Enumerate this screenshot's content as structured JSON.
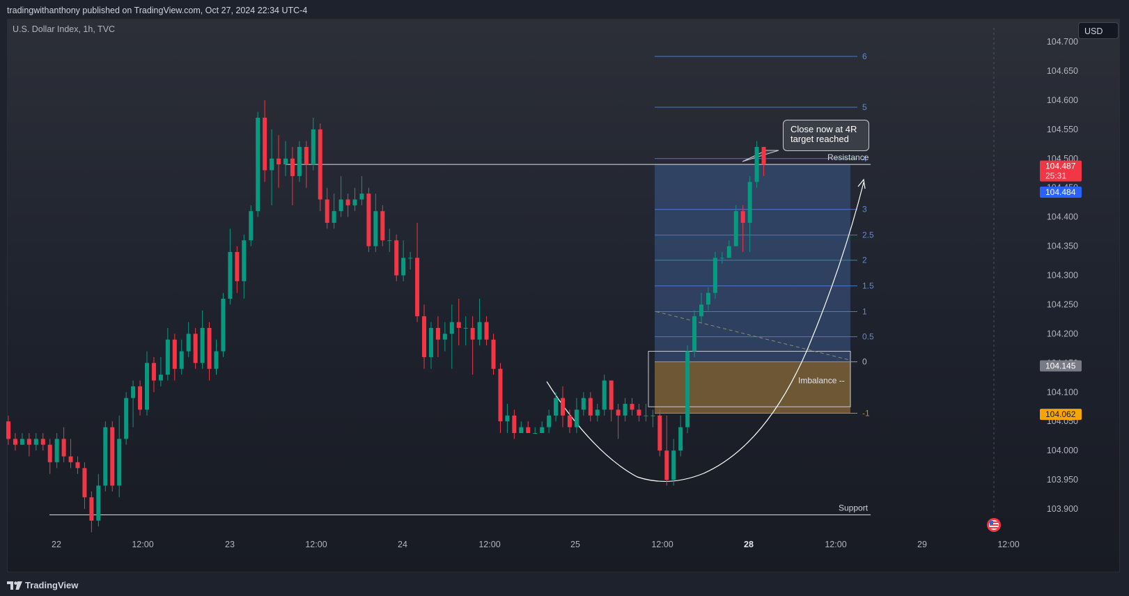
{
  "header": {
    "published": "tradingwithanthony published on TradingView.com, Oct 27, 2024 22:34 UTC-4",
    "symbol": "U.S. Dollar Index, 1h, TVC",
    "currency_button": "USD",
    "brand": "TradingView"
  },
  "chart_data": {
    "type": "candlestick",
    "title": "U.S. Dollar Index, 1h, TVC",
    "ylim": [
      103.87,
      104.71
    ],
    "y_ticks": [
      "103.900",
      "103.950",
      "104.000",
      "104.050",
      "104.100",
      "104.150",
      "104.200",
      "104.250",
      "104.300",
      "104.350",
      "104.400",
      "104.450",
      "104.500",
      "104.550",
      "104.600",
      "104.650",
      "104.700"
    ],
    "x_ticks": [
      "22",
      "12:00",
      "23",
      "12:00",
      "24",
      "12:00",
      "25",
      "12:00",
      "28",
      "12:00",
      "29",
      "12:00"
    ],
    "price_labels": {
      "last": {
        "value": "104.487",
        "countdown": "25:31",
        "color": "#f23645"
      },
      "bid": {
        "value": "104.484",
        "color": "#2962ff"
      },
      "zero_level": {
        "value": "104.145",
        "color": "#787b86"
      },
      "minus_one": {
        "value": "104.062",
        "color": "#f7a600"
      }
    },
    "levels": {
      "resistance": {
        "label": "Resistance",
        "value": 104.49
      },
      "support": {
        "label": "Support",
        "value": 103.89
      }
    },
    "fib_levels": [
      {
        "label": "6",
        "value": 104.675
      },
      {
        "label": "5",
        "value": 104.588
      },
      {
        "label": "4",
        "value": 104.5
      },
      {
        "label": "3",
        "value": 104.413
      },
      {
        "label": "2.5",
        "value": 104.369
      },
      {
        "label": "2",
        "value": 104.326
      },
      {
        "label": "1.5",
        "value": 104.282
      },
      {
        "label": "1",
        "value": 104.238
      },
      {
        "label": "0.5",
        "value": 104.195
      },
      {
        "label": "0",
        "value": 104.152
      },
      {
        "label": "-1",
        "value": 104.064
      }
    ],
    "annotations": {
      "imbalance": "Imbalance --",
      "callout_line1": "Close now at 4R",
      "callout_line2": "target reached"
    },
    "up_color": "#089981",
    "down_color": "#f23645",
    "candles": [
      [
        104.05,
        104.02,
        104.06,
        104.01
      ],
      [
        104.02,
        104.01,
        104.03,
        104.0
      ],
      [
        104.01,
        104.02,
        104.03,
        104.01
      ],
      [
        104.02,
        104.01,
        104.03,
        103.99
      ],
      [
        104.01,
        104.02,
        104.03,
        104.0
      ],
      [
        104.02,
        104.01,
        104.03,
        104.0
      ],
      [
        104.01,
        103.98,
        104.02,
        103.96
      ],
      [
        103.98,
        104.02,
        104.03,
        103.97
      ],
      [
        104.02,
        103.99,
        104.04,
        103.98
      ],
      [
        103.99,
        103.98,
        104.02,
        103.97
      ],
      [
        103.98,
        103.97,
        103.99,
        103.96
      ],
      [
        103.97,
        103.92,
        103.98,
        103.9
      ],
      [
        103.92,
        103.88,
        103.93,
        103.86
      ],
      [
        103.88,
        103.94,
        103.96,
        103.87
      ],
      [
        103.94,
        104.04,
        104.05,
        103.93
      ],
      [
        104.04,
        103.94,
        104.05,
        103.93
      ],
      [
        103.94,
        104.02,
        104.06,
        103.92
      ],
      [
        104.02,
        104.09,
        104.1,
        104.01
      ],
      [
        104.09,
        104.11,
        104.12,
        104.04
      ],
      [
        104.11,
        104.07,
        104.12,
        104.06
      ],
      [
        104.07,
        104.15,
        104.17,
        104.06
      ],
      [
        104.15,
        104.12,
        104.16,
        104.1
      ],
      [
        104.12,
        104.13,
        104.16,
        104.11
      ],
      [
        104.13,
        104.19,
        104.21,
        104.12
      ],
      [
        104.19,
        104.14,
        104.2,
        104.12
      ],
      [
        104.14,
        104.17,
        104.19,
        104.13
      ],
      [
        104.17,
        104.2,
        104.22,
        104.16
      ],
      [
        104.2,
        104.15,
        104.21,
        104.14
      ],
      [
        104.15,
        104.21,
        104.24,
        104.14
      ],
      [
        104.21,
        104.14,
        104.22,
        104.12
      ],
      [
        104.14,
        104.17,
        104.19,
        104.13
      ],
      [
        104.17,
        104.26,
        104.27,
        104.16
      ],
      [
        104.26,
        104.34,
        104.38,
        104.25
      ],
      [
        104.34,
        104.29,
        104.35,
        104.27
      ],
      [
        104.29,
        104.36,
        104.37,
        104.26
      ],
      [
        104.36,
        104.41,
        104.42,
        104.35
      ],
      [
        104.41,
        104.57,
        104.58,
        104.4
      ],
      [
        104.57,
        104.48,
        104.6,
        104.46
      ],
      [
        104.48,
        104.5,
        104.55,
        104.42
      ],
      [
        104.5,
        104.49,
        104.54,
        104.45
      ],
      [
        104.49,
        104.5,
        104.53,
        104.47
      ],
      [
        104.5,
        104.47,
        104.52,
        104.42
      ],
      [
        104.47,
        104.52,
        104.53,
        104.46
      ],
      [
        104.52,
        104.49,
        104.53,
        104.45
      ],
      [
        104.49,
        104.55,
        104.57,
        104.48
      ],
      [
        104.55,
        104.43,
        104.56,
        104.41
      ],
      [
        104.43,
        104.39,
        104.45,
        104.38
      ],
      [
        104.39,
        104.41,
        104.44,
        104.38
      ],
      [
        104.41,
        104.43,
        104.47,
        104.4
      ],
      [
        104.43,
        104.42,
        104.44,
        104.4
      ],
      [
        104.42,
        104.43,
        104.45,
        104.41
      ],
      [
        104.43,
        104.44,
        104.47,
        104.42
      ],
      [
        104.44,
        104.35,
        104.45,
        104.34
      ],
      [
        104.35,
        104.41,
        104.44,
        104.34
      ],
      [
        104.41,
        104.36,
        104.42,
        104.35
      ],
      [
        104.36,
        104.36,
        104.38,
        104.34
      ],
      [
        104.36,
        104.3,
        104.37,
        104.29
      ],
      [
        104.3,
        104.33,
        104.36,
        104.29
      ],
      [
        104.33,
        104.33,
        104.34,
        104.31
      ],
      [
        104.33,
        104.23,
        104.39,
        104.22
      ],
      [
        104.23,
        104.16,
        104.25,
        104.14
      ],
      [
        104.16,
        104.21,
        104.22,
        104.14
      ],
      [
        104.21,
        104.19,
        104.23,
        104.16
      ],
      [
        104.19,
        104.2,
        104.22,
        104.17
      ],
      [
        104.2,
        104.22,
        104.25,
        104.14
      ],
      [
        104.22,
        104.21,
        104.26,
        104.18
      ],
      [
        104.21,
        104.21,
        104.23,
        104.18
      ],
      [
        104.21,
        104.19,
        104.23,
        104.13
      ],
      [
        104.19,
        104.22,
        104.26,
        104.18
      ],
      [
        104.22,
        104.19,
        104.23,
        104.18
      ],
      [
        104.19,
        104.14,
        104.2,
        104.13
      ],
      [
        104.14,
        104.05,
        104.15,
        104.03
      ],
      [
        104.05,
        104.06,
        104.08,
        104.03
      ],
      [
        104.06,
        104.03,
        104.07,
        104.02
      ],
      [
        104.03,
        104.04,
        104.05,
        104.03
      ],
      [
        104.04,
        104.03,
        104.05,
        104.03
      ],
      [
        104.03,
        104.03,
        104.04,
        104.03
      ],
      [
        104.03,
        104.04,
        104.05,
        104.03
      ],
      [
        104.04,
        104.06,
        104.07,
        104.03
      ],
      [
        104.06,
        104.09,
        104.1,
        104.05
      ],
      [
        104.09,
        104.06,
        104.11,
        104.04
      ],
      [
        104.06,
        104.04,
        104.07,
        104.03
      ],
      [
        104.04,
        104.07,
        104.09,
        104.03
      ],
      [
        104.07,
        104.09,
        104.1,
        104.06
      ],
      [
        104.09,
        104.06,
        104.1,
        104.05
      ],
      [
        104.06,
        104.07,
        104.08,
        104.05
      ],
      [
        104.07,
        104.12,
        104.13,
        104.06
      ],
      [
        104.12,
        104.07,
        104.12,
        104.05
      ],
      [
        104.07,
        104.06,
        104.08,
        104.02
      ],
      [
        104.06,
        104.08,
        104.09,
        104.05
      ],
      [
        104.08,
        104.07,
        104.09,
        104.06
      ],
      [
        104.07,
        104.06,
        104.08,
        104.05
      ],
      [
        104.06,
        104.06,
        104.08,
        104.05
      ],
      [
        104.06,
        104.06,
        104.07,
        104.04
      ],
      [
        104.06,
        104.0,
        104.07,
        103.99
      ],
      [
        104.0,
        103.95,
        104.06,
        103.94
      ],
      [
        103.95,
        104.0,
        104.02,
        103.94
      ],
      [
        104.0,
        104.04,
        104.06,
        103.99
      ],
      [
        104.04,
        104.17,
        104.18,
        104.03
      ],
      [
        104.17,
        104.23,
        104.24,
        104.16
      ],
      [
        104.23,
        104.25,
        104.27,
        104.22
      ],
      [
        104.25,
        104.27,
        104.28,
        104.24
      ],
      [
        104.27,
        104.33,
        104.34,
        104.26
      ],
      [
        104.33,
        104.33,
        104.34,
        104.32
      ],
      [
        104.33,
        104.35,
        104.36,
        104.34
      ],
      [
        104.35,
        104.41,
        104.42,
        104.35
      ],
      [
        104.41,
        104.39,
        104.42,
        104.34
      ],
      [
        104.39,
        104.46,
        104.47,
        104.34
      ],
      [
        104.46,
        104.52,
        104.53,
        104.45
      ],
      [
        104.52,
        104.49,
        104.52,
        104.47
      ]
    ]
  }
}
